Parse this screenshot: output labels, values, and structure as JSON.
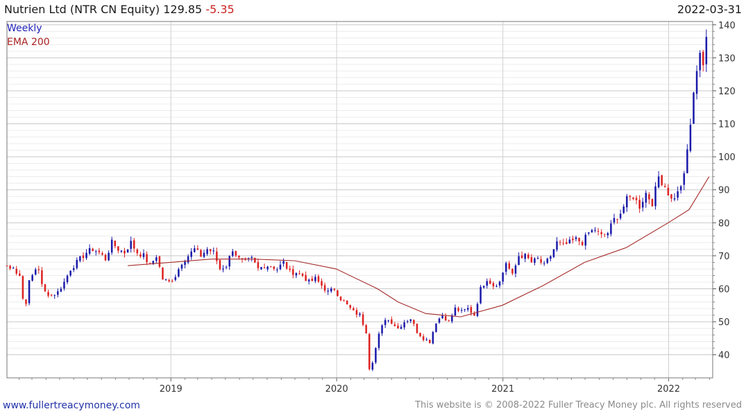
{
  "header": {
    "title": "Nutrien Ltd (NTR CN Equity)",
    "last_price": "129.85",
    "change": "-5.35",
    "date": "2022-03-31"
  },
  "legend": {
    "weekly": "Weekly",
    "ema": "EMA 200"
  },
  "footer": {
    "website": "www.fullertreacymoney.com",
    "copyright": "This website is © 2008-2022 Fuller Treacy Money plc. All rights reserved"
  },
  "colors": {
    "up": "#1a1aaa",
    "down": "#dd2222",
    "ema": "#a52a2a",
    "grid": "#d8d8d8"
  },
  "chart_data": {
    "type": "candlestick",
    "frequency": "weekly",
    "ylim": [
      33,
      141
    ],
    "xlim": [
      "2018-01-05",
      "2022-04-08"
    ],
    "yticks": [
      40,
      50,
      60,
      70,
      80,
      90,
      100,
      110,
      120,
      130,
      140
    ],
    "xticks": [
      "2019",
      "2020",
      "2021",
      "2022"
    ],
    "y_axis_side": "right",
    "grid": true,
    "legend_position": "top-left",
    "series": [
      {
        "name": "Weekly",
        "kind": "ohlc_close_path"
      },
      {
        "name": "EMA 200",
        "kind": "line"
      }
    ],
    "close_path": [
      [
        "2018-01-05",
        67
      ],
      [
        "2018-01-12",
        66
      ],
      [
        "2018-01-19",
        67
      ],
      [
        "2018-01-26",
        65
      ],
      [
        "2018-02-02",
        64
      ],
      [
        "2018-02-09",
        57
      ],
      [
        "2018-02-16",
        56
      ],
      [
        "2018-02-23",
        62
      ],
      [
        "2018-03-09",
        66
      ],
      [
        "2018-03-16",
        66
      ],
      [
        "2018-03-23",
        61
      ],
      [
        "2018-03-30",
        59
      ],
      [
        "2018-04-13",
        58
      ],
      [
        "2018-04-27",
        59
      ],
      [
        "2018-05-11",
        62
      ],
      [
        "2018-05-25",
        66
      ],
      [
        "2018-06-15",
        69
      ],
      [
        "2018-06-29",
        71
      ],
      [
        "2018-07-13",
        72
      ],
      [
        "2018-07-27",
        71
      ],
      [
        "2018-08-10",
        69
      ],
      [
        "2018-08-24",
        74
      ],
      [
        "2018-09-07",
        72
      ],
      [
        "2018-09-21",
        71
      ],
      [
        "2018-10-05",
        74
      ],
      [
        "2018-10-19",
        71
      ],
      [
        "2018-11-02",
        70
      ],
      [
        "2018-11-16",
        67
      ],
      [
        "2018-11-30",
        70
      ],
      [
        "2018-12-14",
        63
      ],
      [
        "2018-12-28",
        62
      ],
      [
        "2019-01-11",
        64
      ],
      [
        "2019-01-25",
        68
      ],
      [
        "2019-02-08",
        70
      ],
      [
        "2019-02-22",
        72
      ],
      [
        "2019-03-08",
        70
      ],
      [
        "2019-03-22",
        72
      ],
      [
        "2019-04-05",
        71
      ],
      [
        "2019-04-19",
        66
      ],
      [
        "2019-05-03",
        67
      ],
      [
        "2019-05-17",
        72
      ],
      [
        "2019-05-31",
        69
      ],
      [
        "2019-06-14",
        68
      ],
      [
        "2019-06-28",
        69
      ],
      [
        "2019-07-12",
        66
      ],
      [
        "2019-07-26",
        67
      ],
      [
        "2019-08-09",
        67
      ],
      [
        "2019-08-23",
        66
      ],
      [
        "2019-09-06",
        68
      ],
      [
        "2019-09-20",
        65
      ],
      [
        "2019-10-04",
        65
      ],
      [
        "2019-10-18",
        64
      ],
      [
        "2019-11-01",
        62
      ],
      [
        "2019-11-15",
        63
      ],
      [
        "2019-11-29",
        61
      ],
      [
        "2019-12-13",
        59
      ],
      [
        "2019-12-27",
        60
      ],
      [
        "2020-01-10",
        57
      ],
      [
        "2020-01-24",
        55
      ],
      [
        "2020-02-07",
        53
      ],
      [
        "2020-02-21",
        52
      ],
      [
        "2020-03-06",
        47
      ],
      [
        "2020-03-13",
        36
      ],
      [
        "2020-03-20",
        38
      ],
      [
        "2020-03-27",
        42
      ],
      [
        "2020-04-03",
        46
      ],
      [
        "2020-04-17",
        51
      ],
      [
        "2020-05-01",
        50
      ],
      [
        "2020-05-15",
        48
      ],
      [
        "2020-05-29",
        50
      ],
      [
        "2020-06-12",
        51
      ],
      [
        "2020-06-26",
        47
      ],
      [
        "2020-07-10",
        45
      ],
      [
        "2020-07-24",
        44
      ],
      [
        "2020-08-07",
        50
      ],
      [
        "2020-08-21",
        52
      ],
      [
        "2020-09-04",
        50
      ],
      [
        "2020-09-18",
        54
      ],
      [
        "2020-10-02",
        53
      ],
      [
        "2020-10-16",
        54
      ],
      [
        "2020-10-30",
        52
      ],
      [
        "2020-11-13",
        60
      ],
      [
        "2020-11-27",
        63
      ],
      [
        "2020-12-11",
        61
      ],
      [
        "2020-12-25",
        62
      ],
      [
        "2021-01-08",
        68
      ],
      [
        "2021-01-22",
        64
      ],
      [
        "2021-02-05",
        70
      ],
      [
        "2021-02-19",
        70
      ],
      [
        "2021-03-05",
        68
      ],
      [
        "2021-03-19",
        69
      ],
      [
        "2021-04-02",
        67
      ],
      [
        "2021-04-16",
        70
      ],
      [
        "2021-04-30",
        74
      ],
      [
        "2021-05-14",
        73
      ],
      [
        "2021-05-28",
        74
      ],
      [
        "2021-06-11",
        75
      ],
      [
        "2021-06-25",
        74
      ],
      [
        "2021-07-09",
        77
      ],
      [
        "2021-07-23",
        78
      ],
      [
        "2021-08-06",
        76
      ],
      [
        "2021-08-20",
        77
      ],
      [
        "2021-09-03",
        81
      ],
      [
        "2021-09-17",
        83
      ],
      [
        "2021-10-01",
        87
      ],
      [
        "2021-10-15",
        88
      ],
      [
        "2021-10-29",
        85
      ],
      [
        "2021-11-12",
        89
      ],
      [
        "2021-11-26",
        86
      ],
      [
        "2021-12-10",
        94
      ],
      [
        "2021-12-24",
        91
      ],
      [
        "2022-01-07",
        87
      ],
      [
        "2022-01-21",
        89
      ],
      [
        "2022-02-04",
        94
      ],
      [
        "2022-02-18",
        110
      ],
      [
        "2022-03-04",
        127
      ],
      [
        "2022-03-11",
        132
      ],
      [
        "2022-03-18",
        128
      ],
      [
        "2022-03-25",
        135
      ],
      [
        "2022-03-31",
        129.85
      ]
    ],
    "ema": [
      [
        "2018-09-28",
        67
      ],
      [
        "2018-12-31",
        68
      ],
      [
        "2019-03-31",
        69
      ],
      [
        "2019-06-30",
        69
      ],
      [
        "2019-09-30",
        68.5
      ],
      [
        "2019-12-31",
        66
      ],
      [
        "2020-03-31",
        60
      ],
      [
        "2020-05-15",
        56
      ],
      [
        "2020-07-15",
        52.5
      ],
      [
        "2020-09-30",
        51.5
      ],
      [
        "2020-12-31",
        55
      ],
      [
        "2021-03-31",
        61
      ],
      [
        "2021-06-30",
        68
      ],
      [
        "2021-09-30",
        72.5
      ],
      [
        "2021-12-31",
        80
      ],
      [
        "2022-02-15",
        84
      ],
      [
        "2022-03-31",
        94
      ]
    ]
  }
}
